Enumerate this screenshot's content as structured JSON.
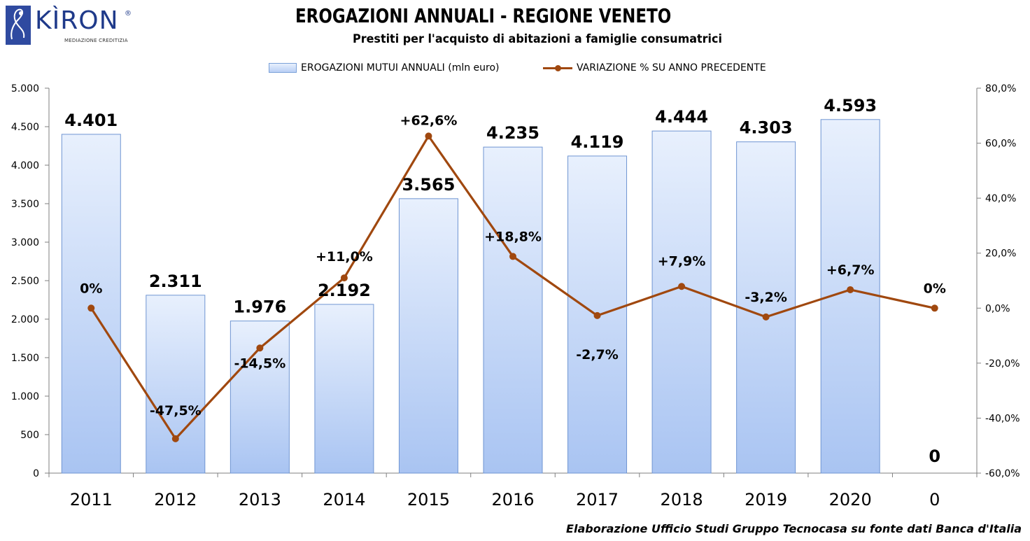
{
  "brand": {
    "name": "KÌRON",
    "registered": "®",
    "tagline": "MEDIAZIONE CREDITIZIA"
  },
  "chart_data": {
    "type": "bar",
    "title": "EROGAZIONI ANNUALI - REGIONE VENETO",
    "subtitle": "Prestiti per l'acquisto di abitazioni a famiglie consumatrici",
    "categories": [
      "2011",
      "2012",
      "2013",
      "2014",
      "2015",
      "2016",
      "2017",
      "2018",
      "2019",
      "2020",
      "0"
    ],
    "series": [
      {
        "name": "EROGAZIONI MUTUI ANNUALI (mln euro)",
        "type": "bar",
        "axis": "left",
        "values": [
          4401,
          2311,
          1976,
          2192,
          3565,
          4235,
          4119,
          4444,
          4303,
          4593,
          0
        ],
        "labels": [
          "4.401",
          "2.311",
          "1.976",
          "2.192",
          "3.565",
          "4.235",
          "4.119",
          "4.444",
          "4.303",
          "4.593",
          "0"
        ]
      },
      {
        "name": "VARIAZIONE % SU ANNO PRECEDENTE",
        "type": "line",
        "axis": "right",
        "values": [
          0,
          -47.5,
          -14.5,
          11.0,
          62.6,
          18.8,
          -2.7,
          7.9,
          -3.2,
          6.7,
          0
        ],
        "labels": [
          "0%",
          "-47,5%",
          "-14,5%",
          "+11,0%",
          "+62,6%",
          "+18,8%",
          "-2,7%",
          "+7,9%",
          "-3,2%",
          "+6,7%",
          "0%"
        ]
      }
    ],
    "y_left": {
      "range": [
        0,
        5000
      ],
      "ticks": [
        0,
        500,
        1000,
        1500,
        2000,
        2500,
        3000,
        3500,
        4000,
        4500,
        5000
      ],
      "tick_labels": [
        "0",
        "500",
        "1.000",
        "1.500",
        "2.000",
        "2.500",
        "3.000",
        "3.500",
        "4.000",
        "4.500",
        "5.000"
      ]
    },
    "y_right": {
      "range": [
        -60,
        80
      ],
      "ticks": [
        -60,
        -40,
        -20,
        0,
        20,
        40,
        60,
        80
      ],
      "tick_labels": [
        "-60,0%",
        "-40,0%",
        "-20,0%",
        "0,0%",
        "20,0%",
        "40,0%",
        "60,0%",
        "80,0%"
      ]
    },
    "legend": "top",
    "grid": false,
    "colors": {
      "bar_top": "#e8f0fd",
      "bar_bottom": "#a9c4f2",
      "bar_border": "#6f95d2",
      "line": "#a0480f"
    }
  },
  "footer": {
    "source": "Elaborazione Ufficio Studi Gruppo Tecnocasa su fonte dati Banca d'Italia"
  }
}
